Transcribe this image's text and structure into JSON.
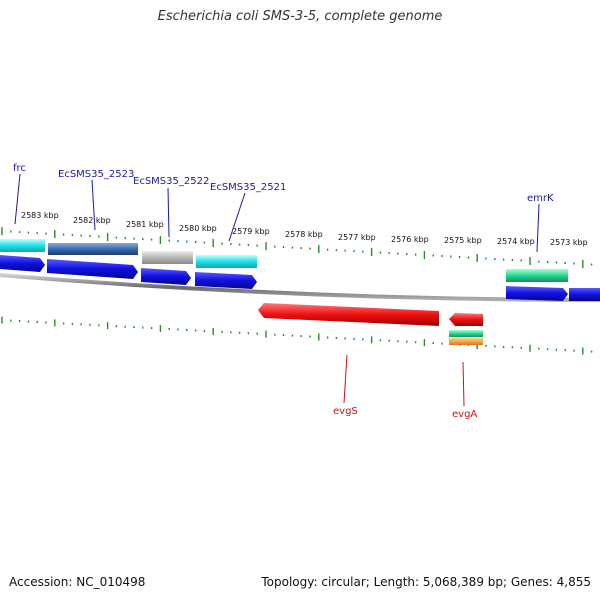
{
  "title": "Escherichia coli SMS-3-5, complete genome",
  "footer": {
    "accession": "Accession: NC_010498",
    "topology": "Topology: circular; Length: 5,068,389 bp; Genes: 4,855"
  },
  "ticks": [
    "2583 kbp",
    "2582 kbp",
    "2581 kbp",
    "2580 kbp",
    "2579 kbp",
    "2578 kbp",
    "2577 kbp",
    "2576 kbp",
    "2575 kbp",
    "2574 kbp",
    "2573 kbp"
  ],
  "genes_forward": [
    "frc",
    "EcSMS35_2523",
    "EcSMS35_2522",
    "EcSMS35_2521",
    "emrK"
  ],
  "genes_reverse": [
    "evgS",
    "evgA"
  ],
  "colors": {
    "cds": "#1010e0",
    "cyan": "#22e0e8",
    "steel": "#3a6cb0",
    "gray": "#b8b8b8",
    "green": "#28d890",
    "red": "#ee1010",
    "orange": "#f09020",
    "label_forward": "#1a1aa0",
    "label_reverse": "#cc1111",
    "tick": "#2a8a2a"
  }
}
